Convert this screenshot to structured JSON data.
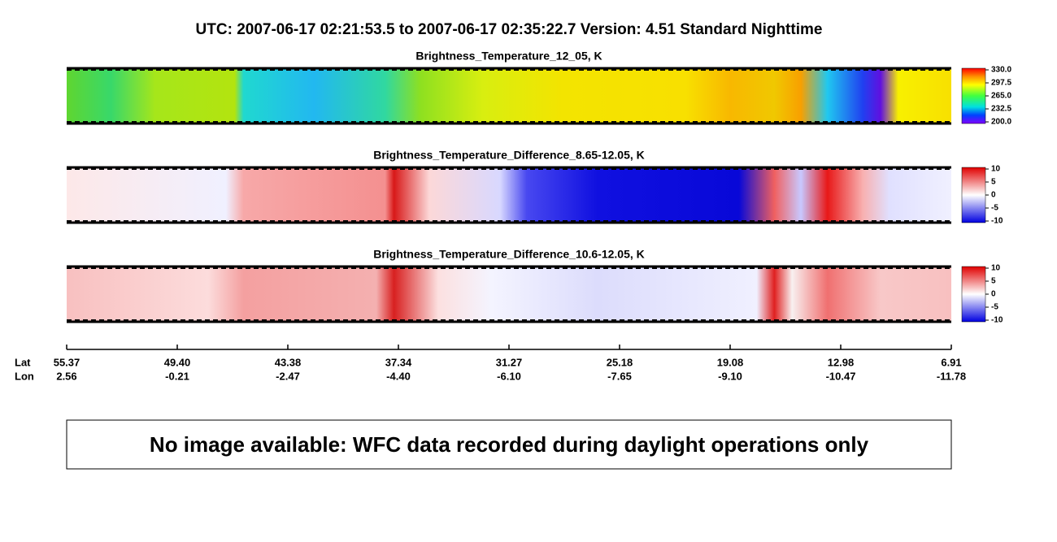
{
  "title": "UTC:  2007-06-17   02:21:53.5  to  2007-06-17   02:35:22.7    Version: 4.51  Standard Nighttime",
  "panels": [
    {
      "title": "Brightness_Temperature_12_05, K",
      "clim": [
        200,
        330
      ],
      "colorbar_ticks": [
        {
          "value": 330,
          "label": "330.0"
        },
        {
          "value": 297.5,
          "label": "297.5"
        },
        {
          "value": 265,
          "label": "265.0"
        },
        {
          "value": 232.5,
          "label": "232.5"
        },
        {
          "value": 200,
          "label": "200.0"
        }
      ]
    },
    {
      "title": "Brightness_Temperature_Difference_8.65-12.05, K",
      "clim": [
        -10,
        10
      ],
      "colorbar_ticks": [
        10,
        5,
        0,
        -5,
        -10
      ]
    },
    {
      "title": "Brightness_Temperature_Difference_10.6-12.05, K",
      "clim": [
        -10,
        10
      ],
      "colorbar_ticks": [
        10,
        5,
        0,
        -5,
        -10
      ]
    }
  ],
  "axis": {
    "lat_label": "Lat",
    "lon_label": "Lon",
    "lat": [
      "55.37",
      "49.40",
      "43.38",
      "37.34",
      "31.27",
      "25.18",
      "19.08",
      "12.98",
      "6.91"
    ],
    "lon": [
      "2.56",
      "-0.21",
      "-2.47",
      "-4.40",
      "-6.10",
      "-7.65",
      "-9.10",
      "-10.47",
      "-11.78"
    ]
  },
  "message": "No image available: WFC data recorded during daylight operations only"
}
